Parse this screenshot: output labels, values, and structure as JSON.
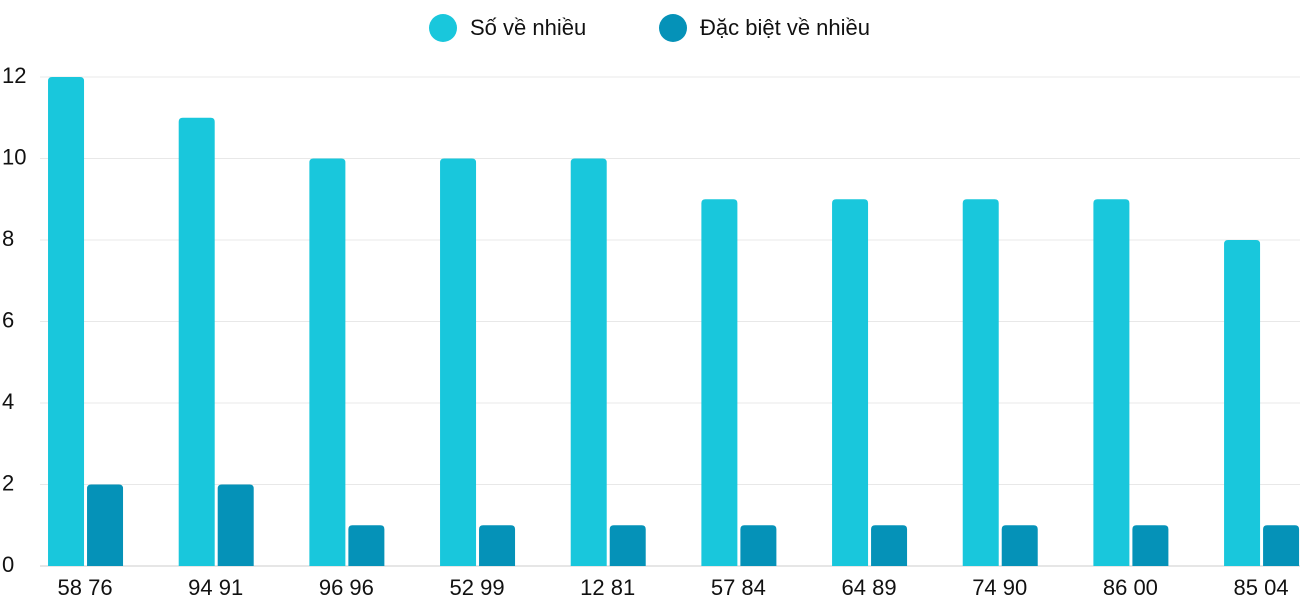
{
  "chart_data": {
    "type": "bar",
    "categories": [
      "58 76",
      "94 91",
      "96 96",
      "52 99",
      "12 81",
      "57 84",
      "64 89",
      "74 90",
      "86 00",
      "85 04"
    ],
    "series": [
      {
        "name": "Số về nhiều",
        "color": "#19c7dc",
        "values": [
          12,
          11,
          10,
          10,
          10,
          9,
          9,
          9,
          9,
          8
        ]
      },
      {
        "name": "Đặc biệt về nhiều",
        "color": "#0592b8",
        "values": [
          2,
          2,
          1,
          1,
          1,
          1,
          1,
          1,
          1,
          1
        ]
      }
    ],
    "ylim": [
      0,
      12
    ],
    "yticks": [
      0,
      2,
      4,
      6,
      8,
      10,
      12
    ],
    "grid": true
  }
}
